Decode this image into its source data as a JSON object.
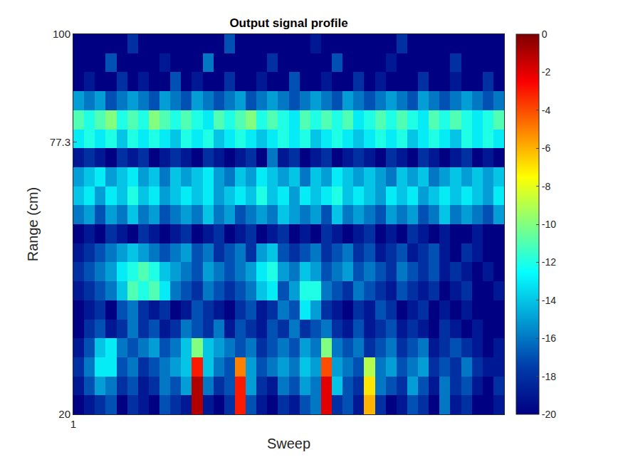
{
  "chart_data": {
    "type": "heatmap",
    "title": "Output signal profile",
    "x_label": "Sweep",
    "y_label": "Range (cm)",
    "color": "jet",
    "x": [
      1,
      2,
      3,
      4,
      5,
      6,
      7,
      8,
      9,
      10,
      11,
      12,
      13,
      14,
      15,
      16,
      17,
      18,
      19,
      20,
      21,
      22,
      23,
      24,
      25,
      26,
      27,
      28,
      29,
      30,
      31,
      32,
      33,
      34,
      35,
      36,
      37,
      38,
      39,
      40,
      41
    ],
    "y": [
      20,
      24,
      28,
      32,
      36,
      40,
      44,
      48,
      52,
      56,
      60,
      64,
      68,
      72,
      76,
      80,
      84,
      88,
      92,
      96,
      100
    ],
    "xlim": [
      1,
      41
    ],
    "xticks": [
      1
    ],
    "ylim": [
      20,
      100
    ],
    "yticks": [
      20,
      77.3,
      100
    ],
    "colorbar": {
      "range": [
        -20,
        0
      ],
      "ticks": [
        0,
        -2,
        -4,
        -6,
        -8,
        -10,
        -12,
        -14,
        -16,
        -18,
        -20
      ]
    },
    "cells": [
      [
        -20,
        -19,
        -18,
        -17,
        -20,
        -18,
        -19,
        -20,
        -17,
        -18,
        -19,
        -1,
        -19,
        -20,
        -18,
        -3,
        -17,
        -19,
        -20,
        -18,
        -19,
        -17,
        -16,
        -2,
        -18,
        -17,
        -19,
        -6,
        -18,
        -20,
        -19,
        -17,
        -18,
        -20,
        -16,
        -19,
        -18,
        -20,
        -20,
        -19
      ],
      [
        -19,
        -17,
        -15,
        -16,
        -18,
        -17,
        -19,
        -18,
        -16,
        -17,
        -15,
        -1,
        -16,
        -18,
        -17,
        -3,
        -15,
        -18,
        -19,
        -16,
        -17,
        -15,
        -16,
        -2,
        -14,
        -17,
        -18,
        -7,
        -16,
        -17,
        -18,
        -15,
        -17,
        -19,
        -16,
        -18,
        -17,
        -19,
        -20,
        -18
      ],
      [
        -18,
        -16,
        -13,
        -13,
        -17,
        -16,
        -18,
        -17,
        -16,
        -15,
        -14,
        -3,
        -14,
        -16,
        -17,
        -5,
        -15,
        -17,
        -16,
        -15,
        -16,
        -14,
        -15,
        -4,
        -15,
        -16,
        -17,
        -9,
        -16,
        -15,
        -17,
        -16,
        -15,
        -18,
        -17,
        -18,
        -16,
        -18,
        -19,
        -19
      ],
      [
        -19,
        -17,
        -14,
        -13,
        -16,
        -17,
        -16,
        -15,
        -17,
        -16,
        -14,
        -10,
        -14,
        -15,
        -16,
        -17,
        -16,
        -18,
        -17,
        -16,
        -17,
        -15,
        -16,
        -10,
        -16,
        -17,
        -16,
        -18,
        -17,
        -16,
        -18,
        -17,
        -16,
        -19,
        -18,
        -17,
        -18,
        -19,
        -20,
        -19
      ],
      [
        -20,
        -18,
        -17,
        -19,
        -18,
        -16,
        -18,
        -17,
        -19,
        -18,
        -16,
        -17,
        -18,
        -16,
        -19,
        -17,
        -18,
        -19,
        -17,
        -18,
        -16,
        -18,
        -17,
        -16,
        -18,
        -19,
        -17,
        -19,
        -18,
        -17,
        -19,
        -18,
        -19,
        -20,
        -18,
        -19,
        -20,
        -19,
        -20,
        -20
      ],
      [
        -20,
        -19,
        -18,
        -20,
        -17,
        -16,
        -18,
        -19,
        -18,
        -20,
        -19,
        -17,
        -18,
        -19,
        -20,
        -18,
        -17,
        -19,
        -18,
        -16,
        -17,
        -13,
        -15,
        -18,
        -19,
        -20,
        -18,
        -19,
        -17,
        -18,
        -20,
        -19,
        -18,
        -20,
        -19,
        -20,
        -19,
        -20,
        -20,
        -20
      ],
      [
        -19,
        -18,
        -17,
        -16,
        -14,
        -11,
        -12,
        -11,
        -13,
        -16,
        -17,
        -18,
        -16,
        -17,
        -18,
        -17,
        -16,
        -14,
        -13,
        -17,
        -15,
        -12,
        -12,
        -16,
        -17,
        -18,
        -16,
        -17,
        -18,
        -19,
        -17,
        -18,
        -19,
        -18,
        -20,
        -19,
        -18,
        -20,
        -20,
        -19
      ],
      [
        -18,
        -17,
        -16,
        -15,
        -13,
        -12,
        -11,
        -12,
        -14,
        -15,
        -16,
        -17,
        -15,
        -16,
        -17,
        -16,
        -15,
        -13,
        -12,
        -15,
        -16,
        -14,
        -15,
        -17,
        -16,
        -15,
        -17,
        -16,
        -17,
        -18,
        -16,
        -17,
        -18,
        -17,
        -19,
        -18,
        -19,
        -20,
        -19,
        -20
      ],
      [
        -19,
        -18,
        -17,
        -16,
        -15,
        -14,
        -15,
        -16,
        -17,
        -16,
        -15,
        -17,
        -16,
        -18,
        -17,
        -16,
        -18,
        -15,
        -14,
        -17,
        -18,
        -17,
        -16,
        -18,
        -17,
        -16,
        -18,
        -17,
        -19,
        -18,
        -17,
        -19,
        -18,
        -17,
        -19,
        -20,
        -18,
        -19,
        -20,
        -20
      ],
      [
        -20,
        -19,
        -20,
        -18,
        -19,
        -20,
        -18,
        -19,
        -20,
        -19,
        -18,
        -20,
        -19,
        -18,
        -20,
        -19,
        -18,
        -20,
        -19,
        -18,
        -20,
        -19,
        -20,
        -18,
        -19,
        -20,
        -19,
        -18,
        -20,
        -19,
        -20,
        -18,
        -19,
        -20,
        -19,
        -20,
        -20,
        -19,
        -20,
        -20
      ],
      [
        -16,
        -15,
        -17,
        -15,
        -16,
        -14,
        -16,
        -15,
        -17,
        -16,
        -15,
        -16,
        -14,
        -16,
        -15,
        -17,
        -16,
        -15,
        -16,
        -14,
        -15,
        -16,
        -15,
        -17,
        -14,
        -16,
        -15,
        -16,
        -17,
        -15,
        -16,
        -15,
        -17,
        -16,
        -14,
        -16,
        -15,
        -16,
        -17,
        -15
      ],
      [
        -14,
        -13,
        -15,
        -13,
        -14,
        -12,
        -14,
        -13,
        -15,
        -14,
        -13,
        -14,
        -13,
        -15,
        -14,
        -13,
        -14,
        -12,
        -14,
        -13,
        -15,
        -13,
        -14,
        -13,
        -12,
        -14,
        -13,
        -14,
        -15,
        -13,
        -14,
        -13,
        -15,
        -14,
        -13,
        -14,
        -13,
        -14,
        -15,
        -13
      ],
      [
        -15,
        -14,
        -13,
        -15,
        -14,
        -13,
        -15,
        -14,
        -16,
        -14,
        -15,
        -14,
        -13,
        -15,
        -16,
        -14,
        -15,
        -13,
        -14,
        -15,
        -14,
        -16,
        -14,
        -15,
        -13,
        -14,
        -15,
        -14,
        -15,
        -16,
        -14,
        -15,
        -14,
        -16,
        -15,
        -14,
        -15,
        -14,
        -15,
        -14
      ],
      [
        -19,
        -18,
        -19,
        -20,
        -18,
        -19,
        -18,
        -20,
        -19,
        -18,
        -19,
        -20,
        -18,
        -19,
        -20,
        -19,
        -18,
        -20,
        -16,
        -19,
        -18,
        -20,
        -19,
        -18,
        -20,
        -19,
        -18,
        -19,
        -20,
        -18,
        -19,
        -20,
        -18,
        -19,
        -20,
        -19,
        -18,
        -20,
        -19,
        -20
      ],
      [
        -13,
        -12,
        -13,
        -12,
        -14,
        -12,
        -13,
        -12,
        -13,
        -14,
        -12,
        -13,
        -12,
        -14,
        -13,
        -12,
        -13,
        -14,
        -13,
        -12,
        -13,
        -12,
        -14,
        -13,
        -12,
        -13,
        -14,
        -13,
        -12,
        -13,
        -12,
        -14,
        -13,
        -12,
        -13,
        -14,
        -12,
        -13,
        -12,
        -13
      ],
      [
        -11,
        -12,
        -11,
        -10,
        -12,
        -11,
        -12,
        -10,
        -11,
        -12,
        -11,
        -12,
        -13,
        -11,
        -12,
        -11,
        -10,
        -12,
        -11,
        -12,
        -13,
        -11,
        -12,
        -11,
        -12,
        -11,
        -13,
        -12,
        -11,
        -12,
        -11,
        -12,
        -13,
        -11,
        -12,
        -11,
        -12,
        -13,
        -12,
        -11
      ],
      [
        -15,
        -16,
        -15,
        -17,
        -16,
        -15,
        -16,
        -17,
        -15,
        -16,
        -17,
        -15,
        -16,
        -17,
        -16,
        -15,
        -17,
        -16,
        -15,
        -16,
        -17,
        -16,
        -15,
        -16,
        -17,
        -15,
        -16,
        -17,
        -16,
        -15,
        -16,
        -17,
        -15,
        -16,
        -17,
        -16,
        -15,
        -16,
        -17,
        -16
      ],
      [
        -20,
        -19,
        -20,
        -20,
        -18,
        -20,
        -19,
        -20,
        -20,
        -17,
        -20,
        -19,
        -20,
        -20,
        -18,
        -20,
        -20,
        -19,
        -20,
        -20,
        -17,
        -20,
        -20,
        -19,
        -20,
        -20,
        -18,
        -20,
        -19,
        -20,
        -20,
        -20,
        -18,
        -20,
        -20,
        -19,
        -20,
        -20,
        -18,
        -20
      ],
      [
        -20,
        -20,
        -20,
        -17,
        -20,
        -20,
        -20,
        -20,
        -19,
        -20,
        -20,
        -20,
        -16,
        -20,
        -20,
        -20,
        -20,
        -20,
        -18,
        -20,
        -20,
        -20,
        -20,
        -20,
        -17,
        -20,
        -20,
        -20,
        -20,
        -19,
        -20,
        -20,
        -20,
        -20,
        -20,
        -18,
        -20,
        -20,
        -20,
        -20
      ],
      [
        -20,
        -20,
        -20,
        -20,
        -20,
        -18,
        -20,
        -20,
        -20,
        -20,
        -20,
        -20,
        -20,
        -20,
        -17,
        -20,
        -20,
        -20,
        -20,
        -20,
        -20,
        -20,
        -19,
        -20,
        -20,
        -20,
        -20,
        -20,
        -20,
        -20,
        -18,
        -20,
        -20,
        -20,
        -20,
        -20,
        -20,
        -20,
        -20,
        -20
      ]
    ]
  }
}
